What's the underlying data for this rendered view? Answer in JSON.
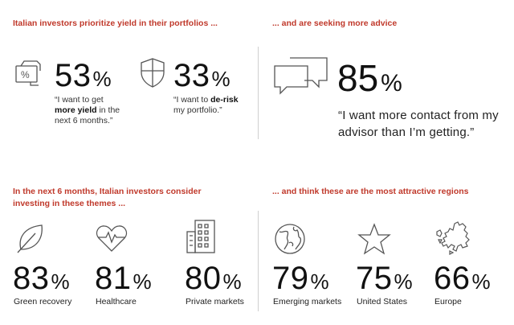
{
  "sections": {
    "yield_heading": "Italian investors prioritize yield in their portfolios ...",
    "advice_heading": "... and are seeking more advice",
    "themes_heading_line1": "In the next 6 months, Italian investors consider",
    "themes_heading_line2": "investing in these themes ...",
    "regions_heading": "... and think these are the most attractive regions"
  },
  "yield": {
    "value": "53",
    "sign": "%",
    "quote_pre": "“I want to get",
    "quote_bold": "more yield",
    "quote_mid": " in the",
    "quote_post": "next 6 months.”"
  },
  "derisk": {
    "value": "33",
    "sign": "%",
    "quote_pre": "“I want to ",
    "quote_bold": "de-risk",
    "quote_post": "my portfolio.”"
  },
  "advice": {
    "value": "85",
    "sign": "%",
    "quote_line1": "“I want more contact from my",
    "quote_line2": "advisor than I’m getting.”"
  },
  "themes": [
    {
      "value": "83",
      "sign": "%",
      "label": "Green recovery",
      "icon": "leaf-icon"
    },
    {
      "value": "81",
      "sign": "%",
      "label": "Healthcare",
      "icon": "heartbeat-icon"
    },
    {
      "value": "80",
      "sign": "%",
      "label": "Private markets",
      "icon": "building-icon"
    }
  ],
  "regions": [
    {
      "value": "79",
      "sign": "%",
      "label": "Emerging markets",
      "icon": "globe-icon"
    },
    {
      "value": "75",
      "sign": "%",
      "label": "United States",
      "icon": "star-icon"
    },
    {
      "value": "66",
      "sign": "%",
      "label": "Europe",
      "icon": "europe-map-icon"
    }
  ],
  "colors": {
    "accent": "#c0392b",
    "text": "#111111",
    "divider": "#cfcfcf",
    "icon_stroke": "#555555"
  }
}
